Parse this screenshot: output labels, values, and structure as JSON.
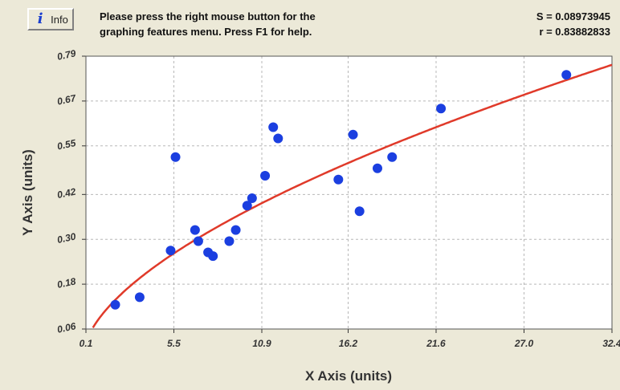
{
  "header": {
    "info_button_label": "Info",
    "help_line_1": "Please press the right mouse button for the",
    "help_line_2": "graphing features menu.  Press F1 for help.",
    "s_stat": "S = 0.08973945",
    "r_stat": "r = 0.83882833"
  },
  "colors": {
    "background": "#ECE9D8",
    "plot_background": "#ffffff",
    "points": "#1b3fe0",
    "fit_curve": "#e03a2a",
    "grid": "#b8b8b8"
  },
  "icons": {
    "info": "info-italic-i-icon"
  },
  "chart_data": {
    "type": "scatter",
    "xlabel": "X Axis (units)",
    "ylabel": "Y Axis (units)",
    "xlim": [
      0.1,
      32.4
    ],
    "ylim": [
      0.06,
      0.79
    ],
    "x_ticks": [
      "0.1",
      "5.5",
      "10.9",
      "16.2",
      "21.6",
      "27.0",
      "32.4"
    ],
    "y_ticks": [
      "0.06",
      "0.18",
      "0.30",
      "0.42",
      "0.55",
      "0.67",
      "0.79"
    ],
    "grid": true,
    "points": [
      {
        "x": 1.9,
        "y": 0.125
      },
      {
        "x": 3.4,
        "y": 0.145
      },
      {
        "x": 5.3,
        "y": 0.27
      },
      {
        "x": 5.6,
        "y": 0.52
      },
      {
        "x": 6.8,
        "y": 0.325
      },
      {
        "x": 7.0,
        "y": 0.295
      },
      {
        "x": 7.6,
        "y": 0.265
      },
      {
        "x": 7.9,
        "y": 0.255
      },
      {
        "x": 8.9,
        "y": 0.295
      },
      {
        "x": 9.3,
        "y": 0.325
      },
      {
        "x": 10.0,
        "y": 0.39
      },
      {
        "x": 10.3,
        "y": 0.41
      },
      {
        "x": 11.1,
        "y": 0.47
      },
      {
        "x": 11.6,
        "y": 0.6
      },
      {
        "x": 11.9,
        "y": 0.57
      },
      {
        "x": 15.6,
        "y": 0.46
      },
      {
        "x": 16.5,
        "y": 0.58
      },
      {
        "x": 16.9,
        "y": 0.375
      },
      {
        "x": 18.0,
        "y": 0.49
      },
      {
        "x": 18.9,
        "y": 0.52
      },
      {
        "x": 21.9,
        "y": 0.65
      },
      {
        "x": 29.6,
        "y": 0.74
      }
    ],
    "fit_curve": {
      "form": "power",
      "a": 0.0935,
      "b": 0.605
    }
  }
}
